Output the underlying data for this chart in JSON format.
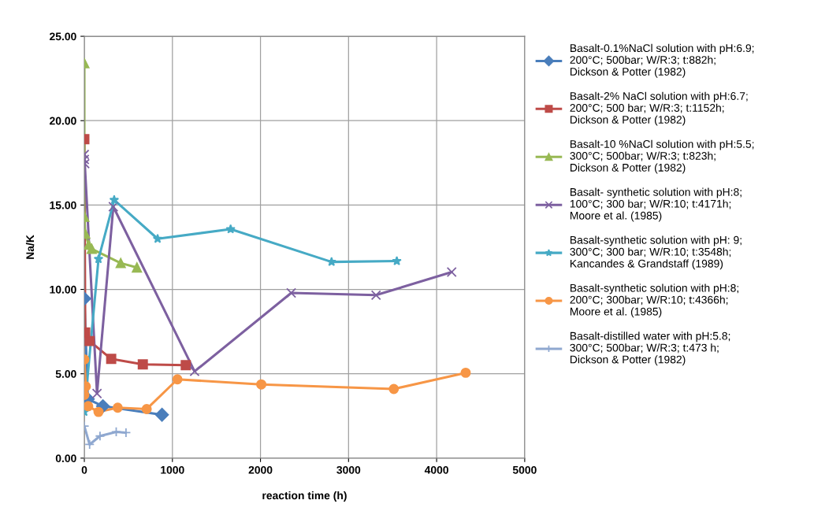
{
  "chart_data": {
    "type": "line",
    "xlabel": "reaction time (h)",
    "ylabel": "Na/K",
    "xlim": [
      0,
      5000
    ],
    "xticks": [
      0,
      1000,
      2000,
      3000,
      4000,
      5000
    ],
    "ylim": [
      0,
      25
    ],
    "yticks": [
      {
        "value": 0,
        "label": "0.00"
      },
      {
        "value": 5,
        "label": "5.00"
      },
      {
        "value": 10,
        "label": "10.00"
      },
      {
        "value": 15,
        "label": "15.00"
      },
      {
        "value": 20,
        "label": "20.00"
      },
      {
        "value": 25,
        "label": "25.00"
      }
    ],
    "grid": true,
    "legend": "right",
    "line_style": "solid",
    "series": [
      {
        "name": "Basalt-0.1%NaCl solution with pH:6.9;\n200°C; 500bar; W/R:3; t:882h;\nDickson & Potter (1982)",
        "color": "#4a7ebb",
        "marker": "diamond",
        "x": [
          0,
          40,
          211,
          882
        ],
        "values": [
          9.45,
          3.5,
          3.08,
          2.57
        ]
      },
      {
        "name": "Basalt-2% NaCl solution with pH:6.7;\n200°C; 500 bar; W/R:3; t:1152h;\nDickson & Potter (1982)",
        "color": "#be4b48",
        "marker": "square",
        "x": [
          0,
          10,
          60,
          305,
          664,
          1152
        ],
        "values": [
          18.9,
          7.45,
          6.94,
          5.88,
          5.56,
          5.51
        ]
      },
      {
        "name": "Basalt-10 %NaCl solution with pH:5.5;\n300°C; 500bar; W/R:3; t:823h;\nDickson & Potter (1982)",
        "color": "#98b954",
        "marker": "triangle",
        "x": [
          0,
          0,
          10,
          50,
          84,
          413,
          597
        ],
        "values": [
          23.4,
          14.3,
          13.3,
          12.65,
          12.4,
          11.56,
          11.3
        ]
      },
      {
        "name": "Basalt- synthetic solution with pH:8;\n100°C; 300 bar; W/R:10; t:4171h;\nMoore et al. (1985)",
        "color": "#7d60a0",
        "marker": "cross",
        "x": [
          0,
          0,
          5,
          144,
          329,
          1252,
          2349,
          3312,
          4171
        ],
        "values": [
          18.0,
          17.7,
          17.45,
          3.83,
          14.9,
          5.14,
          9.79,
          9.66,
          11.03
        ]
      },
      {
        "name": "Basalt-synthetic solution with pH: 9;\n300°C; 300 bar; W/R:10; t:3548h;\nKancandes & Grandstaff (1989)",
        "color": "#46aac5",
        "marker": "star",
        "x": [
          0,
          161,
          339,
          832,
          1661,
          2807,
          3548
        ],
        "values": [
          2.74,
          11.8,
          15.3,
          13.0,
          13.57,
          11.63,
          11.68
        ]
      },
      {
        "name": "Basalt-synthetic solution with pH:8;\n200°C; 300bar; W/R:10; t:4366h;\nMoore et al. (1985)",
        "color": "#f79646",
        "marker": "circle",
        "x": [
          0,
          17,
          0,
          44,
          161,
          379,
          708,
          1057,
          2009,
          3514,
          4330
        ],
        "values": [
          5.85,
          4.25,
          3.75,
          3.08,
          2.74,
          2.99,
          2.91,
          4.67,
          4.37,
          4.1,
          5.06
        ]
      },
      {
        "name": "Basalt-distilled water with pH:5.8;\n300°C; 500bar; W/R:3; t:473 h;\nDickson & Potter (1982)",
        "color": "#8fa8d0",
        "marker": "plus",
        "x": [
          0,
          60,
          178,
          362,
          473
        ],
        "values": [
          1.9,
          0.81,
          1.31,
          1.56,
          1.51
        ]
      }
    ]
  }
}
